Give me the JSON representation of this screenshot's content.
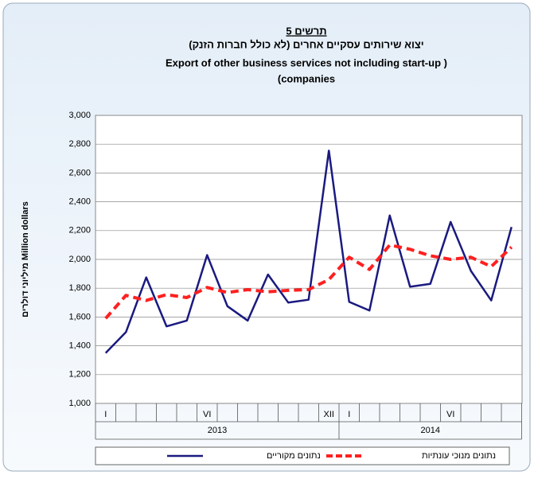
{
  "chart_data": {
    "type": "line",
    "title": "תרשים 5",
    "subtitle_lines": [
      "יצוא שירותים עסקיים אחרים (לא כולל חברות הזנק)",
      "Export of other business services not including start-up  )",
      "(companies"
    ],
    "y_axis_label": "מיליוני דולרים  Million dollars",
    "categories": [
      "I",
      null,
      null,
      null,
      null,
      "VI",
      null,
      null,
      null,
      null,
      null,
      "XII",
      "I",
      null,
      null,
      null,
      null,
      "VI",
      null,
      null,
      null
    ],
    "years": [
      "2013",
      "2014"
    ],
    "series": [
      {
        "name": "נתונים מקוריים",
        "color": "#1a1a80",
        "dash": false,
        "values": [
          1350,
          1495,
          1875,
          1535,
          1575,
          2030,
          1675,
          1575,
          1895,
          1700,
          1720,
          2755,
          1705,
          1645,
          2305,
          1810,
          1830,
          2260,
          1920,
          1715,
          2225
        ]
      },
      {
        "name": "נתונים מנוכי עונתיות",
        "color": "#ff2020",
        "dash": true,
        "values": [
          1590,
          1750,
          1715,
          1755,
          1735,
          1805,
          1770,
          1790,
          1775,
          1785,
          1790,
          1860,
          2015,
          1930,
          2100,
          2070,
          2025,
          2000,
          2015,
          1950,
          2085
        ]
      }
    ],
    "ylim": [
      1000,
      3000
    ],
    "yticks": [
      {
        "value": 1000,
        "label": "1,000"
      },
      {
        "value": 1200,
        "label": "1,200"
      },
      {
        "value": 1400,
        "label": "1,400"
      },
      {
        "value": 1600,
        "label": "1,600"
      },
      {
        "value": 1800,
        "label": "1,800"
      },
      {
        "value": 2000,
        "label": "2,000"
      },
      {
        "value": 2200,
        "label": "2,200"
      },
      {
        "value": 2400,
        "label": "2,400"
      },
      {
        "value": 2600,
        "label": "2,600"
      },
      {
        "value": 2800,
        "label": "2,800"
      },
      {
        "value": 3000,
        "label": "3,000"
      }
    ],
    "grid": true
  }
}
